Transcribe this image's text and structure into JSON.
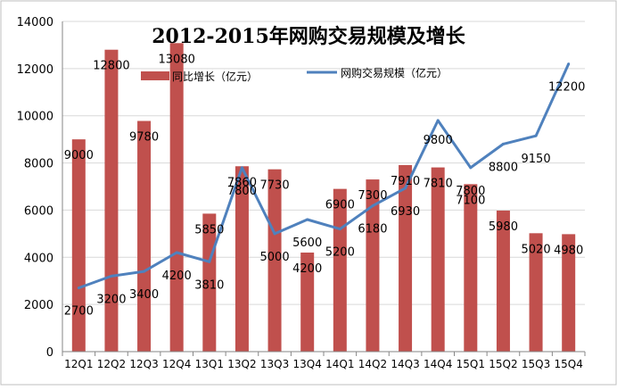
{
  "chart_data": {
    "type": "bar+line",
    "title": "2012-2015年网购交易规模及增长",
    "categories": [
      "12Q1",
      "12Q2",
      "12Q3",
      "12Q4",
      "13Q1",
      "13Q2",
      "13Q3",
      "13Q4",
      "14Q1",
      "14Q2",
      "14Q3",
      "14Q4",
      "15Q1",
      "15Q2",
      "15Q3",
      "15Q4"
    ],
    "series": [
      {
        "name": "同比增长（亿元）",
        "kind": "bar",
        "color": "#c0504d",
        "values": [
          9000,
          12800,
          9780,
          13080,
          5850,
          7860,
          7730,
          4200,
          6900,
          7300,
          7910,
          7810,
          7100,
          5980,
          5020,
          4980
        ],
        "labels": [
          "9000",
          "12800",
          "9780",
          "13080",
          "5850",
          "7860",
          "7730",
          "4200",
          "6900",
          "7300",
          "7910",
          "7810",
          "7100",
          "5980",
          "5020",
          "4980"
        ]
      },
      {
        "name": "网购交易规模（亿元）",
        "kind": "line",
        "color": "#4f81bd",
        "values": [
          2700,
          3200,
          3400,
          4200,
          3810,
          7800,
          5000,
          5600,
          5200,
          6180,
          6930,
          9800,
          7800,
          8800,
          9150,
          12200
        ],
        "labels": [
          "2700",
          "3200",
          "3400",
          "4200",
          "3810",
          "7800",
          "5000",
          "5600",
          "5200",
          "6180",
          "6930",
          "9800",
          "7800",
          "8800",
          "9150",
          "12200"
        ]
      }
    ],
    "ylim": [
      0,
      14000
    ],
    "yticks": [
      "0",
      "2000",
      "4000",
      "6000",
      "8000",
      "10000",
      "12000",
      "14000"
    ],
    "xlabel": "",
    "ylabel": "",
    "grid": true,
    "legend_position": "top-center"
  }
}
